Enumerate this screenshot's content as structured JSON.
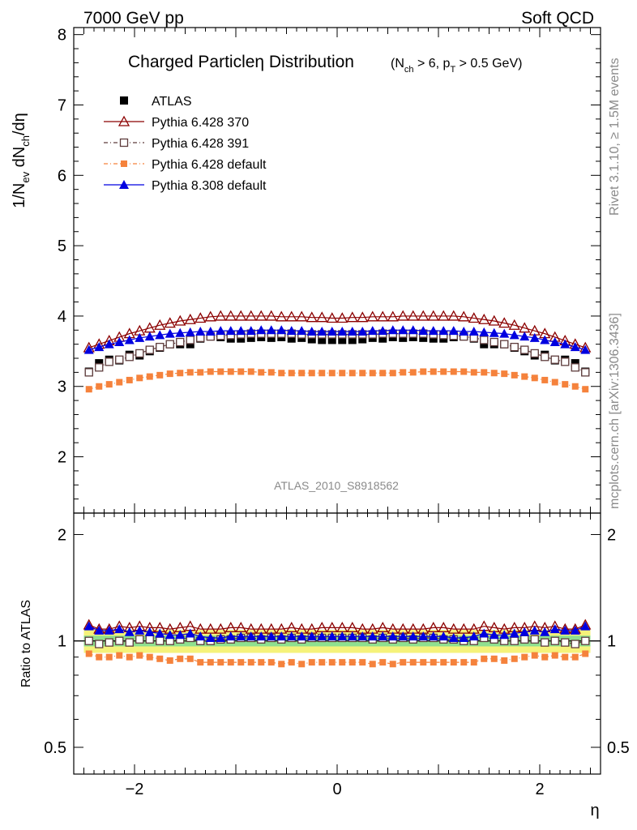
{
  "header": {
    "left": "7000 GeV pp",
    "right": "Soft QCD"
  },
  "side_texts": {
    "rivet": "Rivet 3.1.10, ≥ 1.5M events",
    "mcplots": "mcplots.cern.ch [arXiv:1306.3436]"
  },
  "chart_data": [
    {
      "type": "scatter",
      "panel": "main",
      "title": "Charged Particleη Distribution",
      "title_condition": "(N_ch > 6, p_T > 0.5 GeV)",
      "title_condition_parts": {
        "open": "(N",
        "sub1": "ch",
        "mid": " > 6, p",
        "sub2": "T",
        "close": " > 0.5 GeV)"
      },
      "ylabel": "1/N_ev dN_ch/dη",
      "ylabel_parts": {
        "a": "1/N",
        "sub1": "ev",
        "b": " dN",
        "sub2": "ch",
        "c": "/dη"
      },
      "xlabel": "η",
      "analysis_label": "ATLAS_2010_S8918562",
      "xlim": [
        -2.6,
        2.6
      ],
      "ylim": [
        1.2,
        8.1
      ],
      "yticks": [
        2,
        3,
        4,
        5,
        6,
        7,
        8
      ],
      "legend_position": "top-left",
      "x": [
        -2.45,
        -2.35,
        -2.25,
        -2.15,
        -2.05,
        -1.95,
        -1.85,
        -1.75,
        -1.65,
        -1.55,
        -1.45,
        -1.35,
        -1.25,
        -1.15,
        -1.05,
        -0.95,
        -0.85,
        -0.75,
        -0.65,
        -0.55,
        -0.45,
        -0.35,
        -0.25,
        -0.15,
        -0.05,
        0.05,
        0.15,
        0.25,
        0.35,
        0.45,
        0.55,
        0.65,
        0.75,
        0.85,
        0.95,
        1.05,
        1.15,
        1.25,
        1.35,
        1.45,
        1.55,
        1.65,
        1.75,
        1.85,
        1.95,
        2.05,
        2.15,
        2.25,
        2.35,
        2.45
      ],
      "series": [
        {
          "name": "ATLAS",
          "color": "#000000",
          "marker": "filled-square",
          "values": [
            3.21,
            3.33,
            3.38,
            3.37,
            3.45,
            3.44,
            3.5,
            3.55,
            3.6,
            3.6,
            3.6,
            3.68,
            3.71,
            3.7,
            3.68,
            3.68,
            3.69,
            3.7,
            3.69,
            3.7,
            3.68,
            3.69,
            3.67,
            3.66,
            3.66,
            3.66,
            3.66,
            3.67,
            3.69,
            3.68,
            3.7,
            3.69,
            3.7,
            3.69,
            3.68,
            3.68,
            3.7,
            3.71,
            3.68,
            3.6,
            3.6,
            3.6,
            3.55,
            3.5,
            3.44,
            3.45,
            3.37,
            3.38,
            3.33,
            3.21
          ]
        },
        {
          "name": "Pythia 6.428 370",
          "color": "#8b0000",
          "marker": "open-triangle",
          "values": [
            3.55,
            3.6,
            3.65,
            3.7,
            3.75,
            3.79,
            3.83,
            3.87,
            3.9,
            3.93,
            3.95,
            3.97,
            3.99,
            4.0,
            4.0,
            4.0,
            4.0,
            4.0,
            4.0,
            3.99,
            3.99,
            3.99,
            3.98,
            3.98,
            3.97,
            3.97,
            3.98,
            3.98,
            3.99,
            3.99,
            3.99,
            4.0,
            4.0,
            4.0,
            4.0,
            4.0,
            4.0,
            3.99,
            3.97,
            3.95,
            3.93,
            3.9,
            3.87,
            3.83,
            3.79,
            3.75,
            3.7,
            3.65,
            3.6,
            3.55
          ]
        },
        {
          "name": "Pythia 6.428 391",
          "color": "#5e3c3c",
          "marker": "open-square",
          "values": [
            3.2,
            3.27,
            3.35,
            3.38,
            3.42,
            3.47,
            3.52,
            3.56,
            3.6,
            3.63,
            3.66,
            3.69,
            3.71,
            3.72,
            3.73,
            3.74,
            3.75,
            3.75,
            3.75,
            3.75,
            3.75,
            3.74,
            3.74,
            3.74,
            3.74,
            3.74,
            3.74,
            3.74,
            3.74,
            3.75,
            3.75,
            3.75,
            3.75,
            3.75,
            3.74,
            3.73,
            3.72,
            3.71,
            3.69,
            3.66,
            3.63,
            3.6,
            3.56,
            3.52,
            3.47,
            3.42,
            3.38,
            3.35,
            3.27,
            3.2
          ]
        },
        {
          "name": "Pythia 6.428 default",
          "color": "#f5823c",
          "marker": "filled-square-small",
          "values": [
            2.96,
            3.0,
            3.03,
            3.06,
            3.09,
            3.12,
            3.14,
            3.16,
            3.18,
            3.19,
            3.2,
            3.2,
            3.21,
            3.21,
            3.21,
            3.21,
            3.21,
            3.2,
            3.2,
            3.19,
            3.19,
            3.19,
            3.19,
            3.19,
            3.19,
            3.19,
            3.19,
            3.19,
            3.19,
            3.19,
            3.19,
            3.2,
            3.2,
            3.21,
            3.21,
            3.21,
            3.21,
            3.21,
            3.2,
            3.2,
            3.19,
            3.18,
            3.16,
            3.14,
            3.12,
            3.09,
            3.06,
            3.03,
            3.0,
            2.96
          ]
        },
        {
          "name": "Pythia 8.308 default",
          "color": "#0000e0",
          "marker": "filled-triangle",
          "values": [
            3.52,
            3.56,
            3.6,
            3.63,
            3.66,
            3.69,
            3.71,
            3.73,
            3.75,
            3.76,
            3.77,
            3.78,
            3.78,
            3.79,
            3.79,
            3.79,
            3.79,
            3.8,
            3.8,
            3.8,
            3.79,
            3.79,
            3.78,
            3.78,
            3.78,
            3.78,
            3.78,
            3.78,
            3.79,
            3.79,
            3.8,
            3.8,
            3.8,
            3.79,
            3.79,
            3.79,
            3.79,
            3.78,
            3.78,
            3.77,
            3.76,
            3.75,
            3.73,
            3.71,
            3.69,
            3.66,
            3.63,
            3.6,
            3.56,
            3.52
          ]
        }
      ]
    },
    {
      "type": "scatter",
      "panel": "ratio",
      "ylabel": "Ratio to ATLAS",
      "xlabel": "η",
      "xlim": [
        -2.6,
        2.6
      ],
      "ylim": [
        0.42,
        2.3
      ],
      "yticks": [
        0.5,
        1,
        2
      ],
      "ytick_labels": [
        "0.5",
        "1",
        "2"
      ],
      "xticks": [
        -2,
        0,
        2
      ],
      "xtick_labels": [
        "−2",
        "0",
        "2"
      ],
      "x": [
        -2.45,
        -2.35,
        -2.25,
        -2.15,
        -2.05,
        -1.95,
        -1.85,
        -1.75,
        -1.65,
        -1.55,
        -1.45,
        -1.35,
        -1.25,
        -1.15,
        -1.05,
        -0.95,
        -0.85,
        -0.75,
        -0.65,
        -0.55,
        -0.45,
        -0.35,
        -0.25,
        -0.15,
        -0.05,
        0.05,
        0.15,
        0.25,
        0.35,
        0.45,
        0.55,
        0.65,
        0.75,
        0.85,
        0.95,
        1.05,
        1.15,
        1.25,
        1.35,
        1.45,
        1.55,
        1.65,
        1.75,
        1.85,
        1.95,
        2.05,
        2.15,
        2.25,
        2.35,
        2.45
      ],
      "uncertainty_band": {
        "inner_halfwidth": 0.035,
        "outer_halfwidth": 0.075,
        "inner_color": "#8fe08f",
        "outer_color": "#f5f27a"
      },
      "series": [
        {
          "name": "Pythia 6.428 370",
          "color": "#8b0000",
          "marker": "open-triangle",
          "values": [
            1.11,
            1.08,
            1.08,
            1.1,
            1.09,
            1.1,
            1.09,
            1.09,
            1.08,
            1.09,
            1.1,
            1.08,
            1.08,
            1.08,
            1.09,
            1.09,
            1.08,
            1.08,
            1.08,
            1.08,
            1.09,
            1.08,
            1.08,
            1.09,
            1.09,
            1.09,
            1.09,
            1.08,
            1.08,
            1.09,
            1.08,
            1.08,
            1.08,
            1.08,
            1.09,
            1.09,
            1.08,
            1.08,
            1.08,
            1.1,
            1.09,
            1.08,
            1.09,
            1.09,
            1.1,
            1.09,
            1.1,
            1.08,
            1.08,
            1.11
          ]
        },
        {
          "name": "Pythia 6.428 391",
          "color": "#5e3c3c",
          "marker": "open-square",
          "values": [
            1.0,
            0.98,
            0.99,
            1.0,
            0.99,
            1.01,
            1.01,
            1.0,
            1.0,
            1.01,
            1.02,
            1.0,
            1.0,
            1.01,
            1.01,
            1.02,
            1.02,
            1.01,
            1.02,
            1.01,
            1.02,
            1.01,
            1.02,
            1.02,
            1.02,
            1.02,
            1.02,
            1.02,
            1.01,
            1.02,
            1.01,
            1.02,
            1.01,
            1.02,
            1.02,
            1.01,
            1.01,
            1.0,
            1.0,
            1.02,
            1.01,
            1.0,
            1.0,
            1.01,
            1.01,
            0.99,
            1.0,
            0.99,
            0.98,
            1.0
          ]
        },
        {
          "name": "Pythia 6.428 default",
          "color": "#f5823c",
          "marker": "filled-square-small",
          "values": [
            0.92,
            0.9,
            0.9,
            0.91,
            0.9,
            0.91,
            0.9,
            0.89,
            0.88,
            0.89,
            0.89,
            0.87,
            0.87,
            0.87,
            0.87,
            0.87,
            0.87,
            0.87,
            0.87,
            0.86,
            0.87,
            0.86,
            0.87,
            0.87,
            0.87,
            0.87,
            0.87,
            0.87,
            0.86,
            0.87,
            0.86,
            0.87,
            0.87,
            0.87,
            0.87,
            0.87,
            0.87,
            0.87,
            0.87,
            0.89,
            0.89,
            0.88,
            0.89,
            0.9,
            0.91,
            0.9,
            0.91,
            0.9,
            0.9,
            0.92
          ]
        },
        {
          "name": "Pythia 8.308 default",
          "color": "#0000e0",
          "marker": "filled-triangle",
          "values": [
            1.1,
            1.07,
            1.07,
            1.08,
            1.06,
            1.07,
            1.06,
            1.05,
            1.04,
            1.04,
            1.05,
            1.03,
            1.02,
            1.02,
            1.03,
            1.03,
            1.03,
            1.03,
            1.03,
            1.03,
            1.03,
            1.03,
            1.03,
            1.03,
            1.03,
            1.03,
            1.03,
            1.03,
            1.03,
            1.03,
            1.03,
            1.03,
            1.03,
            1.03,
            1.03,
            1.03,
            1.02,
            1.02,
            1.03,
            1.05,
            1.04,
            1.04,
            1.05,
            1.06,
            1.07,
            1.06,
            1.08,
            1.07,
            1.07,
            1.1
          ]
        }
      ]
    }
  ]
}
